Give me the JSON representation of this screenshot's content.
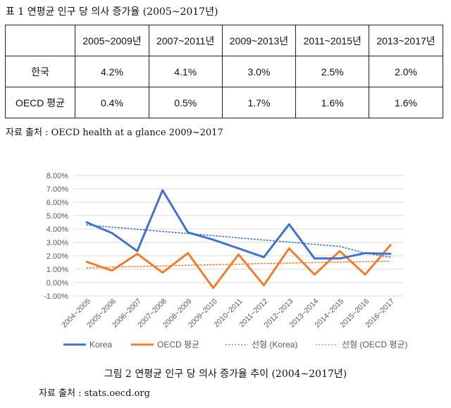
{
  "table1": {
    "title": "표 1 연평균 인구 당 의사 증가율 (2005~2017년)",
    "headers": [
      "",
      "2005~2009년",
      "2007~2011년",
      "2009~2013년",
      "2011~2015년",
      "2013~2017년"
    ],
    "rows": [
      {
        "label": "한국",
        "values": [
          "4.2%",
          "4.1%",
          "3.0%",
          "2.5%",
          "2.0%"
        ]
      },
      {
        "label": "OECD 평균",
        "values": [
          "0.4%",
          "0.5%",
          "1.7%",
          "1.6%",
          "1.6%"
        ]
      }
    ],
    "source": "자료 출처 : OECD health at a glance 2009~2017"
  },
  "figure2": {
    "caption": "그림 2 연평균 인구 당 의사 증가율 추이 (2004~2017년)",
    "source": "자료 출처 : stats.oecd.org"
  },
  "chart_data": {
    "type": "line",
    "categories": [
      "2004~2005",
      "2005~2006",
      "2006~2007",
      "2007~2008",
      "2008~2009",
      "2009~2010",
      "2010~2011",
      "2011~2012",
      "2012~2013",
      "2013~2014",
      "2014~2015",
      "2015~2016",
      "2016~2017"
    ],
    "series": [
      {
        "name": "Korea",
        "color": "#4472c4",
        "style": "solid",
        "values": [
          4.5,
          3.7,
          2.35,
          6.9,
          3.75,
          3.2,
          2.55,
          1.9,
          4.35,
          1.8,
          1.8,
          2.2,
          2.15
        ]
      },
      {
        "name": "OECD 평균",
        "color": "#ed7d31",
        "style": "solid",
        "values": [
          1.55,
          0.9,
          2.15,
          0.75,
          2.2,
          -0.4,
          2.1,
          -0.2,
          2.55,
          0.6,
          2.35,
          0.6,
          2.8
        ]
      },
      {
        "name": "선형 (Korea)",
        "color": "#4472c4",
        "style": "dotted",
        "values": [
          4.3,
          4.14,
          3.98,
          3.82,
          3.66,
          3.5,
          3.34,
          3.18,
          3.02,
          2.86,
          2.7,
          2.2,
          1.9
        ]
      },
      {
        "name": "선형 (OECD 평균)",
        "color": "#ed7d31",
        "style": "dotted",
        "values": [
          1.1,
          1.16,
          1.2,
          1.25,
          1.3,
          1.33,
          1.37,
          1.42,
          1.46,
          1.5,
          1.53,
          1.56,
          1.6
        ]
      }
    ],
    "yticks": [
      "8.00%",
      "7.00%",
      "6.00%",
      "5.00%",
      "4.00%",
      "3.00%",
      "2.00%",
      "1.00%",
      "0.00%",
      "-1.00%"
    ],
    "ylim": [
      -1,
      8
    ],
    "grid": true,
    "legend": "bottom"
  }
}
